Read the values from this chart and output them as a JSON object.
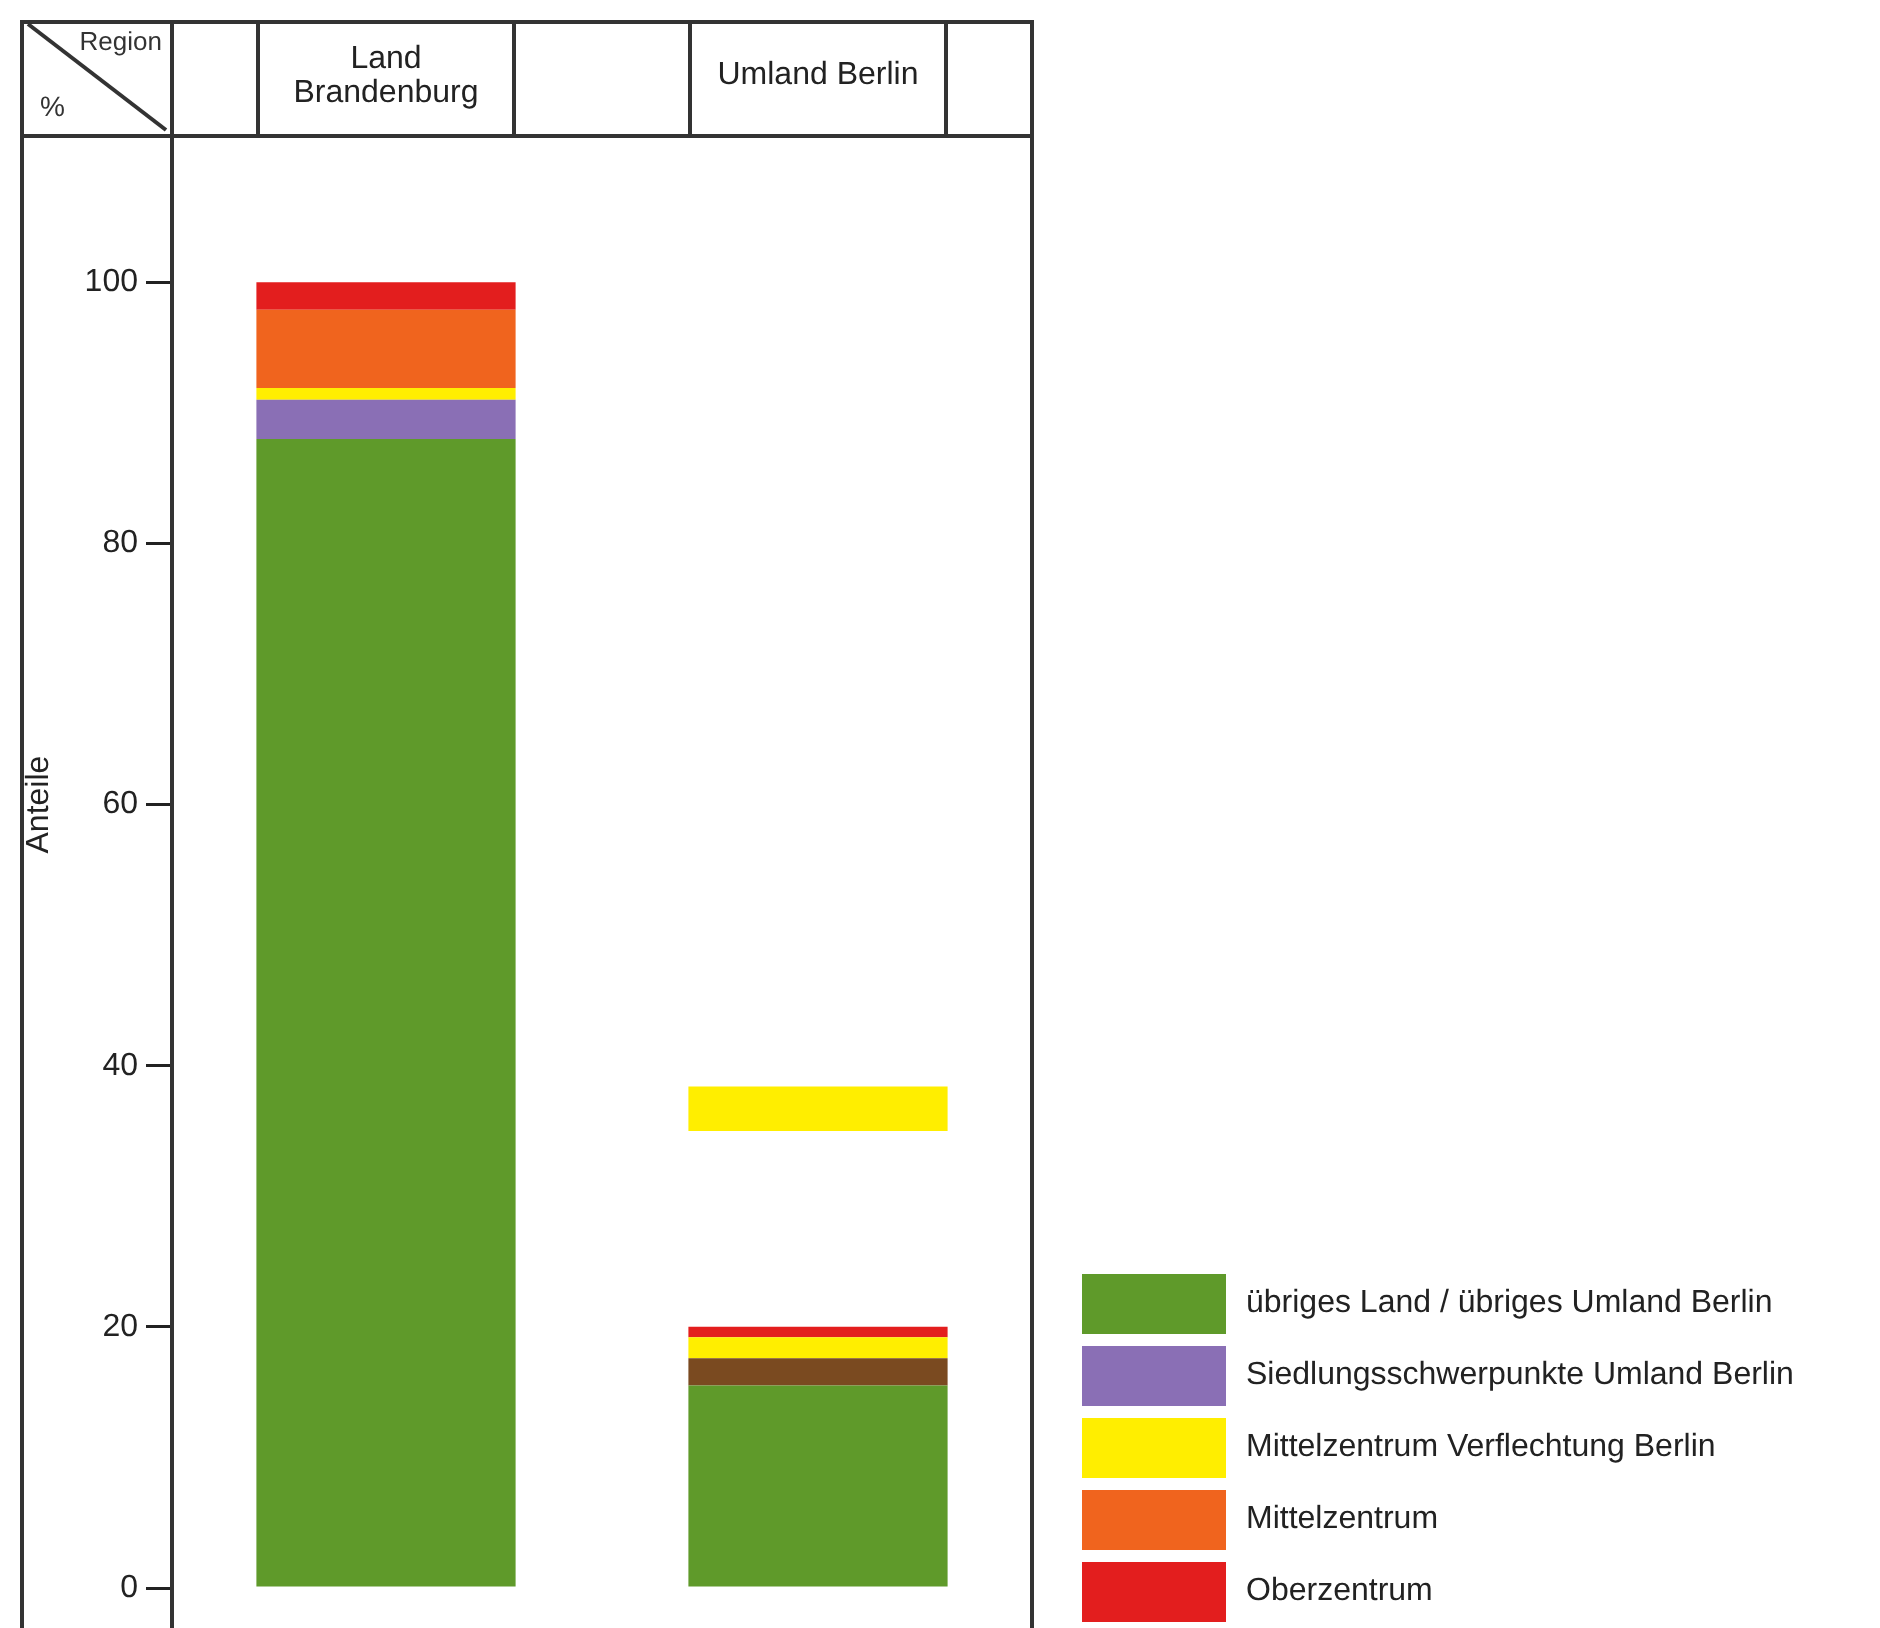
{
  "chart_data": {
    "type": "bar",
    "xlabel": "Region",
    "ylabel": "Anteile",
    "annotations": [
      "%"
    ],
    "categories": [
      "Land Brandenburg",
      "Umland Berlin"
    ],
    "series": [
      {
        "name": "übriges Land / übriges Umland Berlin",
        "color": "#5f9a2a",
        "base": [
          0,
          0
        ],
        "values": [
          88,
          15.5
        ]
      },
      {
        "name": "Siedlungsschwerpunkte Umland Berlin",
        "color": "#8a6fb5",
        "colors": [
          "#8a6fb5",
          "#7a4a20"
        ],
        "base": [
          88,
          15.5
        ],
        "values": [
          3,
          2.1
        ]
      },
      {
        "name": "Mittelzentrum Verflechtung Berlin",
        "color": "#ffee00",
        "base": [
          91,
          17.6
        ],
        "values": [
          0.9,
          1.6
        ]
      },
      {
        "name": "Mittelzentrum",
        "color": "#f0641e",
        "base": [
          91.9,
          null
        ],
        "values": [
          6,
          null
        ]
      },
      {
        "name": "Oberzentrum",
        "color": "#e31e1e",
        "base": [
          97.9,
          19.2
        ],
        "values": [
          2.1,
          0.8
        ]
      },
      {
        "color": "#ffee00",
        "base": [
          null,
          35
        ],
        "values": [
          null,
          3.4
        ]
      }
    ],
    "ylim": [
      0,
      120
    ],
    "yticks": [
      0,
      20,
      40,
      60,
      80,
      100
    ],
    "grid": false,
    "legend": "bottom right"
  }
}
